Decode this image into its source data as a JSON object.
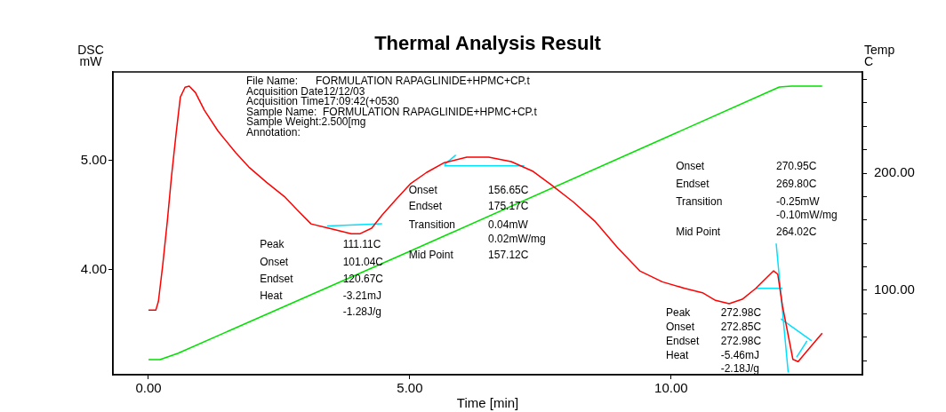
{
  "chart_data": {
    "type": "line",
    "title": "Thermal Analysis Result",
    "xlabel": "Time [min]",
    "ylabel": "DSC\nmW",
    "y2label": "Temp\nC",
    "xlim": [
      -0.68,
      13.66
    ],
    "xticks": [
      {
        "value": 0,
        "label": "0.00"
      },
      {
        "value": 5,
        "label": "5.00"
      },
      {
        "value": 10,
        "label": "10.00"
      }
    ],
    "ylim": [
      3.04,
      5.81
    ],
    "yticks": [
      {
        "value": 4,
        "label": "4.00"
      },
      {
        "value": 5,
        "label": "5.00"
      }
    ],
    "y2lim": [
      28,
      286.4
    ],
    "y2ticks": [
      {
        "value": 40,
        "label": null
      },
      {
        "value": 60,
        "label": null
      },
      {
        "value": 80,
        "label": null
      },
      {
        "value": 100,
        "label": "100.00"
      },
      {
        "value": 120,
        "label": null
      },
      {
        "value": 140,
        "label": null
      },
      {
        "value": 160,
        "label": null
      },
      {
        "value": 180,
        "label": null
      },
      {
        "value": 200,
        "label": "200.00"
      },
      {
        "value": 220,
        "label": null
      },
      {
        "value": 240,
        "label": null
      },
      {
        "value": 260,
        "label": null
      },
      {
        "value": 280,
        "label": null
      }
    ],
    "grid": false,
    "legend": false,
    "marker": "none",
    "line_style": "solid",
    "series": [
      {
        "color": "#ff0000",
        "x": [
          0,
          0.14,
          0.19,
          0.27,
          0.36,
          0.44,
          0.53,
          0.61,
          0.7,
          0.78,
          0.9,
          1.07,
          1.33,
          1.67,
          1.92,
          2.26,
          2.6,
          2.86,
          3.11,
          3.45,
          3.88,
          4.05,
          4.27,
          4.47,
          4.73,
          5.02,
          5.32,
          5.66,
          6.09,
          6.51,
          6.94,
          7.36,
          7.7,
          8.13,
          8.55,
          8.98,
          9.4,
          9.83,
          10.26,
          10.6,
          10.85,
          11.11,
          11.36,
          11.62,
          11.96,
          12.04,
          12.13,
          12.33,
          12.43,
          12.64,
          12.89
        ],
        "values": [
          3.63,
          3.63,
          3.71,
          4.03,
          4.44,
          4.85,
          5.25,
          5.58,
          5.67,
          5.68,
          5.62,
          5.46,
          5.27,
          5.07,
          4.94,
          4.8,
          4.67,
          4.54,
          4.42,
          4.38,
          4.33,
          4.33,
          4.38,
          4.5,
          4.64,
          4.79,
          4.89,
          4.98,
          5.03,
          5.03,
          4.99,
          4.9,
          4.78,
          4.62,
          4.44,
          4.2,
          3.99,
          3.89,
          3.83,
          3.79,
          3.72,
          3.69,
          3.73,
          3.83,
          3.99,
          3.96,
          3.67,
          3.18,
          3.16,
          3.28,
          3.42
        ]
      },
      {
        "color": "#00e0ff",
        "x": [
          3.42,
          4.47,
          null,
          5.66,
          5.88,
          null,
          5.66,
          7.19,
          null,
          11.62,
          12.13,
          null,
          12.01,
          12.24,
          null,
          12.1,
          12.69,
          null,
          12.6,
          12.4
        ],
        "values": [
          4.4,
          4.42,
          null,
          4.96,
          5.05,
          null,
          4.95,
          4.95,
          null,
          3.83,
          3.83,
          null,
          4.24,
          3.06,
          null,
          3.55,
          3.35,
          null,
          3.35,
          3.2
        ]
      },
      {
        "color": "#00e000",
        "axis": "y2",
        "x": [
          0,
          0.22,
          0.56,
          5,
          12.07,
          12.3,
          12.89
        ],
        "values": [
          40.9,
          40.9,
          46.2,
          133.3,
          273.5,
          274.2,
          274.2
        ]
      }
    ],
    "annotations": [
      "File Name:      FORMULATION RAPAGLINIDE+HPMC+CP.t",
      "Acquisition Date12/12/03",
      "Acquisition Time17:09:42(+0530",
      "Sample Name:  FORMULATION RAPAGLINIDE+HPMC+CP.t",
      "Sample Weight:2.500[mg",
      "Annotation:",
      "Peak",
      "111.11C",
      "Onset",
      "101.04C",
      "Endset",
      "120.67C",
      "Heat",
      "-3.21mJ",
      "-1.28J/g",
      "Onset",
      "156.65C",
      "Endset",
      "175.17C",
      "Transition",
      "0.04mW",
      "0.02mW/mg",
      "Mid Point",
      "157.12C",
      "Onset",
      "270.95C",
      "Endset",
      "269.80C",
      "Transition",
      "-0.25mW",
      "-0.10mW/mg",
      "Mid Point",
      "264.02C",
      "Peak",
      "272.98C",
      "Onset",
      "272.85C",
      "Endset",
      "272.98C",
      "Heat",
      "-5.46mJ",
      "-2.18J/g"
    ]
  }
}
